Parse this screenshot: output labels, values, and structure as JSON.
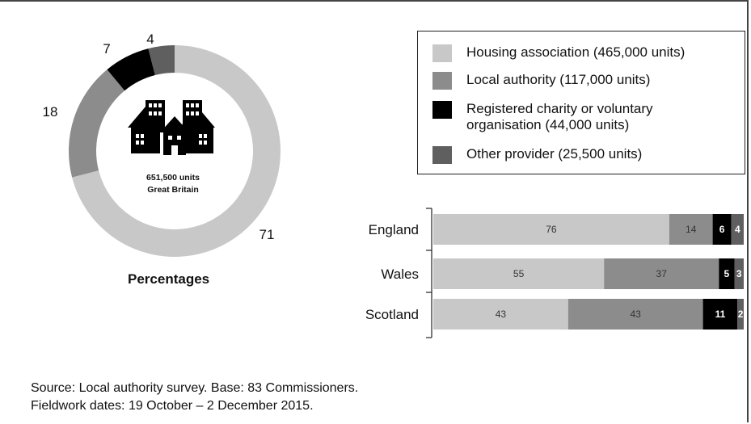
{
  "legend": {
    "items": [
      {
        "label": "Housing association (465,000 units)",
        "color": "#c8c8c8"
      },
      {
        "label": "Local authority (117,000 units)",
        "color": "#8c8c8c"
      },
      {
        "label": "Registered charity or voluntary organisation (44,000 units)",
        "color": "#000000"
      },
      {
        "label": "Other provider (25,500 units)",
        "color": "#5f5f5f"
      }
    ]
  },
  "donut": {
    "center_line1": "651,500 units",
    "center_line2": "Great Britain",
    "caption": "Percentages",
    "icon": "houses-icon"
  },
  "source": {
    "line1": "Source: Local authority survey. Base: 83 Commissioners.",
    "line2": "Fieldwork dates: 19 October – 2 December 2015."
  },
  "chart_data": [
    {
      "type": "pie",
      "donut": true,
      "title": "Percentages",
      "categories": [
        "Housing association",
        "Local authority",
        "Registered charity or voluntary organisation",
        "Other provider"
      ],
      "values": [
        71,
        18,
        7,
        4
      ],
      "colors": [
        "#c8c8c8",
        "#8c8c8c",
        "#000000",
        "#5f5f5f"
      ]
    },
    {
      "type": "bar",
      "orientation": "horizontal",
      "stacked": true,
      "categories": [
        "England",
        "Wales",
        "Scotland"
      ],
      "series": [
        {
          "name": "Housing association",
          "values": [
            76,
            55,
            43
          ],
          "color": "#c8c8c8"
        },
        {
          "name": "Local authority",
          "values": [
            14,
            37,
            43
          ],
          "color": "#8c8c8c"
        },
        {
          "name": "Registered charity or voluntary organisation",
          "values": [
            6,
            5,
            11
          ],
          "color": "#000000"
        },
        {
          "name": "Other provider",
          "values": [
            4,
            3,
            2
          ],
          "color": "#5f5f5f"
        }
      ],
      "xlim": [
        0,
        100
      ]
    }
  ]
}
